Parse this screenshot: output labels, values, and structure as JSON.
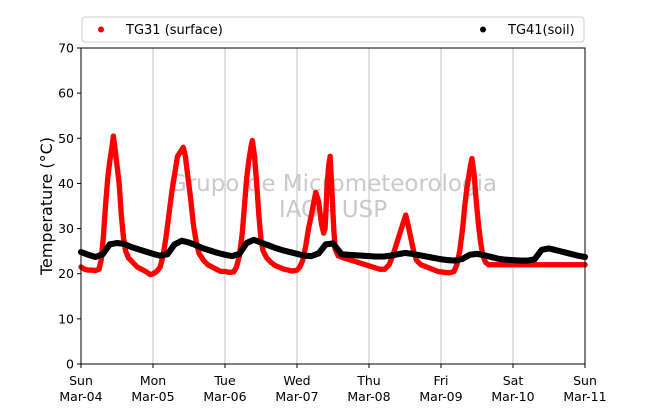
{
  "chart_data": {
    "type": "scatter",
    "title": "",
    "xlabel": "",
    "ylabel": "Temperature (°C)",
    "ylim": [
      0,
      70
    ],
    "yticks": [
      0,
      10,
      20,
      30,
      40,
      50,
      60,
      70
    ],
    "xlim": [
      0,
      7
    ],
    "xticks": [
      {
        "x": 0,
        "day": "Sun",
        "date": "Mar-04"
      },
      {
        "x": 1,
        "day": "Mon",
        "date": "Mar-05"
      },
      {
        "x": 2,
        "day": "Tue",
        "date": "Mar-06"
      },
      {
        "x": 3,
        "day": "Wed",
        "date": "Mar-07"
      },
      {
        "x": 4,
        "day": "Thu",
        "date": "Mar-08"
      },
      {
        "x": 5,
        "day": "Fri",
        "date": "Mar-09"
      },
      {
        "x": 6,
        "day": "Sat",
        "date": "Mar-10"
      },
      {
        "x": 7,
        "day": "Sun",
        "date": "Mar-11"
      }
    ],
    "grid": "vertical",
    "legend_position": "top",
    "watermark": [
      "Grupo de Micrometeorologia",
      "IAG - USP"
    ],
    "series": [
      {
        "name": "TG31 (surface)",
        "color": "#ff0000",
        "marker": "dot",
        "points": [
          [
            0.0,
            21.5
          ],
          [
            0.05,
            21.0
          ],
          [
            0.1,
            20.8
          ],
          [
            0.15,
            20.8
          ],
          [
            0.2,
            20.7
          ],
          [
            0.25,
            21.0
          ],
          [
            0.28,
            23.0
          ],
          [
            0.31,
            28.0
          ],
          [
            0.34,
            35.0
          ],
          [
            0.37,
            41.0
          ],
          [
            0.4,
            45.0
          ],
          [
            0.43,
            48.0
          ],
          [
            0.45,
            50.5
          ],
          [
            0.47,
            48.0
          ],
          [
            0.5,
            44.0
          ],
          [
            0.53,
            40.0
          ],
          [
            0.56,
            33.0
          ],
          [
            0.59,
            28.0
          ],
          [
            0.62,
            25.0
          ],
          [
            0.66,
            23.5
          ],
          [
            0.72,
            22.5
          ],
          [
            0.78,
            21.5
          ],
          [
            0.84,
            21.0
          ],
          [
            0.9,
            20.5
          ],
          [
            0.96,
            19.8
          ],
          [
            1.0,
            20.0
          ],
          [
            1.05,
            20.5
          ],
          [
            1.1,
            21.5
          ],
          [
            1.14,
            24.0
          ],
          [
            1.18,
            28.0
          ],
          [
            1.22,
            33.0
          ],
          [
            1.26,
            38.0
          ],
          [
            1.3,
            42.0
          ],
          [
            1.34,
            46.0
          ],
          [
            1.38,
            47.0
          ],
          [
            1.42,
            48.0
          ],
          [
            1.45,
            46.0
          ],
          [
            1.48,
            42.0
          ],
          [
            1.52,
            37.0
          ],
          [
            1.56,
            31.0
          ],
          [
            1.6,
            27.0
          ],
          [
            1.64,
            24.5
          ],
          [
            1.7,
            23.0
          ],
          [
            1.76,
            22.0
          ],
          [
            1.82,
            21.5
          ],
          [
            1.88,
            21.0
          ],
          [
            1.94,
            20.5
          ],
          [
            2.0,
            20.5
          ],
          [
            2.06,
            20.3
          ],
          [
            2.12,
            20.4
          ],
          [
            2.16,
            21.5
          ],
          [
            2.2,
            24.0
          ],
          [
            2.24,
            29.0
          ],
          [
            2.27,
            35.0
          ],
          [
            2.3,
            41.0
          ],
          [
            2.33,
            45.0
          ],
          [
            2.36,
            48.0
          ],
          [
            2.38,
            49.5
          ],
          [
            2.41,
            46.0
          ],
          [
            2.44,
            40.0
          ],
          [
            2.47,
            33.0
          ],
          [
            2.5,
            27.5
          ],
          [
            2.53,
            25.0
          ],
          [
            2.58,
            23.5
          ],
          [
            2.64,
            22.5
          ],
          [
            2.7,
            21.8
          ],
          [
            2.76,
            21.4
          ],
          [
            2.82,
            21.0
          ],
          [
            2.88,
            20.8
          ],
          [
            2.94,
            20.6
          ],
          [
            3.0,
            20.8
          ],
          [
            3.04,
            21.5
          ],
          [
            3.08,
            23.0
          ],
          [
            3.12,
            26.0
          ],
          [
            3.16,
            30.0
          ],
          [
            3.2,
            33.0
          ],
          [
            3.23,
            35.5
          ],
          [
            3.26,
            38.0
          ],
          [
            3.3,
            36.0
          ],
          [
            3.34,
            31.0
          ],
          [
            3.37,
            29.0
          ],
          [
            3.39,
            30.0
          ],
          [
            3.42,
            40.0
          ],
          [
            3.44,
            44.0
          ],
          [
            3.46,
            46.0
          ],
          [
            3.48,
            40.0
          ],
          [
            3.51,
            30.0
          ],
          [
            3.53,
            25.5
          ],
          [
            3.57,
            24.0
          ],
          [
            3.65,
            23.5
          ],
          [
            3.75,
            23.0
          ],
          [
            3.85,
            22.5
          ],
          [
            3.95,
            22.0
          ],
          [
            4.05,
            21.5
          ],
          [
            4.15,
            21.0
          ],
          [
            4.22,
            21.0
          ],
          [
            4.28,
            22.0
          ],
          [
            4.33,
            24.0
          ],
          [
            4.37,
            26.0
          ],
          [
            4.41,
            28.0
          ],
          [
            4.45,
            30.0
          ],
          [
            4.48,
            31.5
          ],
          [
            4.51,
            33.0
          ],
          [
            4.54,
            31.0
          ],
          [
            4.58,
            28.0
          ],
          [
            4.62,
            25.0
          ],
          [
            4.66,
            23.0
          ],
          [
            4.72,
            22.0
          ],
          [
            4.8,
            21.5
          ],
          [
            4.88,
            21.0
          ],
          [
            4.96,
            20.5
          ],
          [
            5.05,
            20.3
          ],
          [
            5.12,
            20.2
          ],
          [
            5.18,
            20.5
          ],
          [
            5.22,
            22.0
          ],
          [
            5.26,
            25.0
          ],
          [
            5.3,
            30.0
          ],
          [
            5.33,
            35.0
          ],
          [
            5.36,
            39.0
          ],
          [
            5.39,
            42.0
          ],
          [
            5.41,
            44.0
          ],
          [
            5.43,
            45.5
          ],
          [
            5.46,
            42.0
          ],
          [
            5.49,
            36.0
          ],
          [
            5.52,
            31.0
          ],
          [
            5.55,
            27.0
          ],
          [
            5.58,
            24.0
          ],
          [
            5.62,
            22.5
          ],
          [
            5.66,
            22.0
          ],
          [
            5.8,
            22.0
          ],
          [
            6.0,
            22.0
          ],
          [
            6.2,
            22.0
          ],
          [
            6.4,
            22.0
          ],
          [
            6.6,
            22.0
          ],
          [
            6.8,
            22.0
          ],
          [
            7.0,
            22.0
          ]
        ]
      },
      {
        "name": "TG41(soil)",
        "color": "#000000",
        "marker": "dot",
        "points": [
          [
            0.0,
            24.8
          ],
          [
            0.1,
            24.2
          ],
          [
            0.2,
            23.7
          ],
          [
            0.3,
            24.3
          ],
          [
            0.4,
            26.5
          ],
          [
            0.5,
            26.8
          ],
          [
            0.6,
            26.6
          ],
          [
            0.7,
            25.9
          ],
          [
            0.8,
            25.4
          ],
          [
            0.9,
            24.9
          ],
          [
            1.0,
            24.4
          ],
          [
            1.1,
            24.0
          ],
          [
            1.2,
            24.3
          ],
          [
            1.3,
            26.5
          ],
          [
            1.4,
            27.3
          ],
          [
            1.5,
            26.9
          ],
          [
            1.6,
            26.3
          ],
          [
            1.7,
            25.6
          ],
          [
            1.8,
            25.1
          ],
          [
            1.9,
            24.6
          ],
          [
            2.0,
            24.2
          ],
          [
            2.1,
            23.9
          ],
          [
            2.2,
            24.4
          ],
          [
            2.3,
            26.8
          ],
          [
            2.4,
            27.5
          ],
          [
            2.5,
            26.9
          ],
          [
            2.6,
            26.3
          ],
          [
            2.7,
            25.7
          ],
          [
            2.8,
            25.2
          ],
          [
            2.9,
            24.8
          ],
          [
            3.0,
            24.4
          ],
          [
            3.1,
            24.0
          ],
          [
            3.2,
            23.9
          ],
          [
            3.3,
            24.5
          ],
          [
            3.4,
            26.5
          ],
          [
            3.5,
            26.7
          ],
          [
            3.56,
            25.5
          ],
          [
            3.62,
            24.3
          ],
          [
            3.7,
            24.2
          ],
          [
            3.8,
            24.1
          ],
          [
            3.9,
            24.0
          ],
          [
            4.0,
            23.9
          ],
          [
            4.1,
            23.8
          ],
          [
            4.2,
            23.8
          ],
          [
            4.3,
            24.0
          ],
          [
            4.4,
            24.3
          ],
          [
            4.5,
            24.6
          ],
          [
            4.6,
            24.4
          ],
          [
            4.7,
            24.1
          ],
          [
            4.8,
            23.8
          ],
          [
            4.9,
            23.5
          ],
          [
            5.0,
            23.2
          ],
          [
            5.1,
            23.0
          ],
          [
            5.2,
            22.9
          ],
          [
            5.3,
            23.3
          ],
          [
            5.4,
            24.2
          ],
          [
            5.5,
            24.4
          ],
          [
            5.6,
            24.1
          ],
          [
            5.7,
            23.7
          ],
          [
            5.8,
            23.3
          ],
          [
            5.9,
            23.1
          ],
          [
            6.0,
            23.0
          ],
          [
            6.1,
            22.9
          ],
          [
            6.2,
            22.9
          ],
          [
            6.3,
            23.2
          ],
          [
            6.4,
            25.3
          ],
          [
            6.5,
            25.6
          ],
          [
            6.6,
            25.2
          ],
          [
            6.7,
            24.8
          ],
          [
            6.8,
            24.4
          ],
          [
            6.9,
            24.0
          ],
          [
            7.0,
            23.7
          ]
        ]
      }
    ]
  }
}
